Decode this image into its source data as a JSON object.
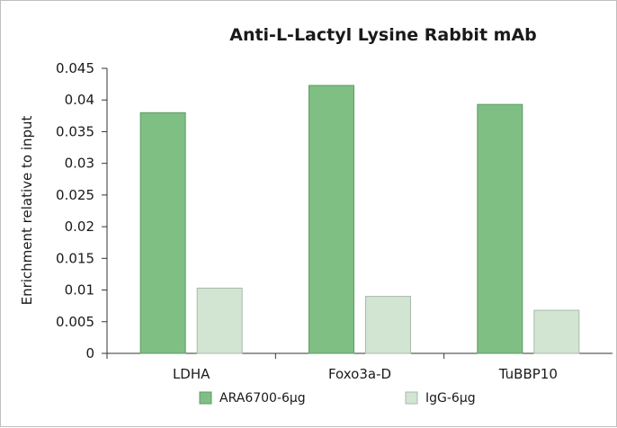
{
  "chart_data": {
    "type": "bar",
    "title": "Anti-L-Lactyl Lysine Rabbit mAb",
    "ylabel": "Enrichment relative to input",
    "xlabel": "",
    "categories": [
      "LDHA",
      "Foxo3a-D",
      "TuBBP10"
    ],
    "series": [
      {
        "name": "ARA6700-6μg",
        "values": [
          0.038,
          0.0423,
          0.0393
        ],
        "color": "#7fbf84",
        "stroke": "#5f9a64"
      },
      {
        "name": "IgG-6μg",
        "values": [
          0.0103,
          0.009,
          0.0068
        ],
        "color": "#d2e5d3",
        "stroke": "#a9b9aa"
      }
    ],
    "ylim": [
      0,
      0.045
    ],
    "yticks": [
      "0",
      "0.005",
      "0.01",
      "0.015",
      "0.02",
      "0.025",
      "0.03",
      "0.035",
      "0.04",
      "0.045"
    ],
    "grid": false,
    "legend_position": "bottom"
  }
}
